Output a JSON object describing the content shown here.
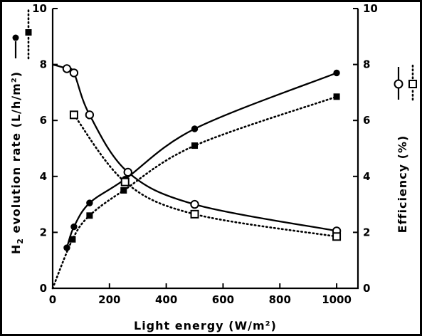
{
  "chart_data": {
    "type": "line",
    "xlabel": "Light energy (W/m²)",
    "ylabel_left_main": "H",
    "ylabel_left_sub": "2",
    "ylabel_left_rest": " evolution rate (L/h/m²)",
    "ylabel_right": "Efficiency (%)",
    "xlim": [
      0,
      1000
    ],
    "xlim_plot": [
      0,
      1075
    ],
    "x_ticks": [
      0,
      200,
      400,
      600,
      800,
      1000
    ],
    "x_tick_labels": [
      "0",
      "200",
      "400",
      "600",
      "800",
      "1000"
    ],
    "ylim_left": [
      0,
      10
    ],
    "y_ticks_left": [
      0,
      2,
      4,
      6,
      8,
      10
    ],
    "y_tick_labels_left": [
      "0",
      "2",
      "4",
      "6",
      "8",
      "10"
    ],
    "ylim_right": [
      0,
      10
    ],
    "y_ticks_right": [
      0,
      2,
      4,
      6,
      8,
      10
    ],
    "y_tick_labels_right": [
      "0",
      "2",
      "4",
      "6",
      "8",
      "10"
    ],
    "grid": false,
    "series": [
      {
        "axis": "left",
        "marker": "filled-circle",
        "line": "solid",
        "points": [
          [
            50,
            1.45
          ],
          [
            75,
            2.2
          ],
          [
            130,
            3.05
          ],
          [
            255,
            3.9
          ],
          [
            500,
            5.7
          ],
          [
            1000,
            7.7
          ]
        ]
      },
      {
        "axis": "left",
        "marker": "filled-square",
        "line": "dotted",
        "points": [
          [
            0,
            0
          ],
          [
            70,
            1.75
          ],
          [
            130,
            2.6
          ],
          [
            250,
            3.5
          ],
          [
            500,
            5.1
          ],
          [
            1000,
            6.85
          ]
        ]
      },
      {
        "axis": "right",
        "marker": "open-circle",
        "line": "solid",
        "points": [
          [
            0,
            8.0
          ],
          [
            50,
            7.85
          ],
          [
            75,
            7.7
          ],
          [
            130,
            6.2
          ],
          [
            265,
            4.15
          ],
          [
            500,
            3.0
          ],
          [
            1000,
            2.05
          ]
        ]
      },
      {
        "axis": "right",
        "marker": "open-square",
        "line": "dotted",
        "points": [
          [
            75,
            6.2
          ],
          [
            255,
            3.8
          ],
          [
            500,
            2.65
          ],
          [
            1000,
            1.85
          ]
        ]
      }
    ]
  }
}
